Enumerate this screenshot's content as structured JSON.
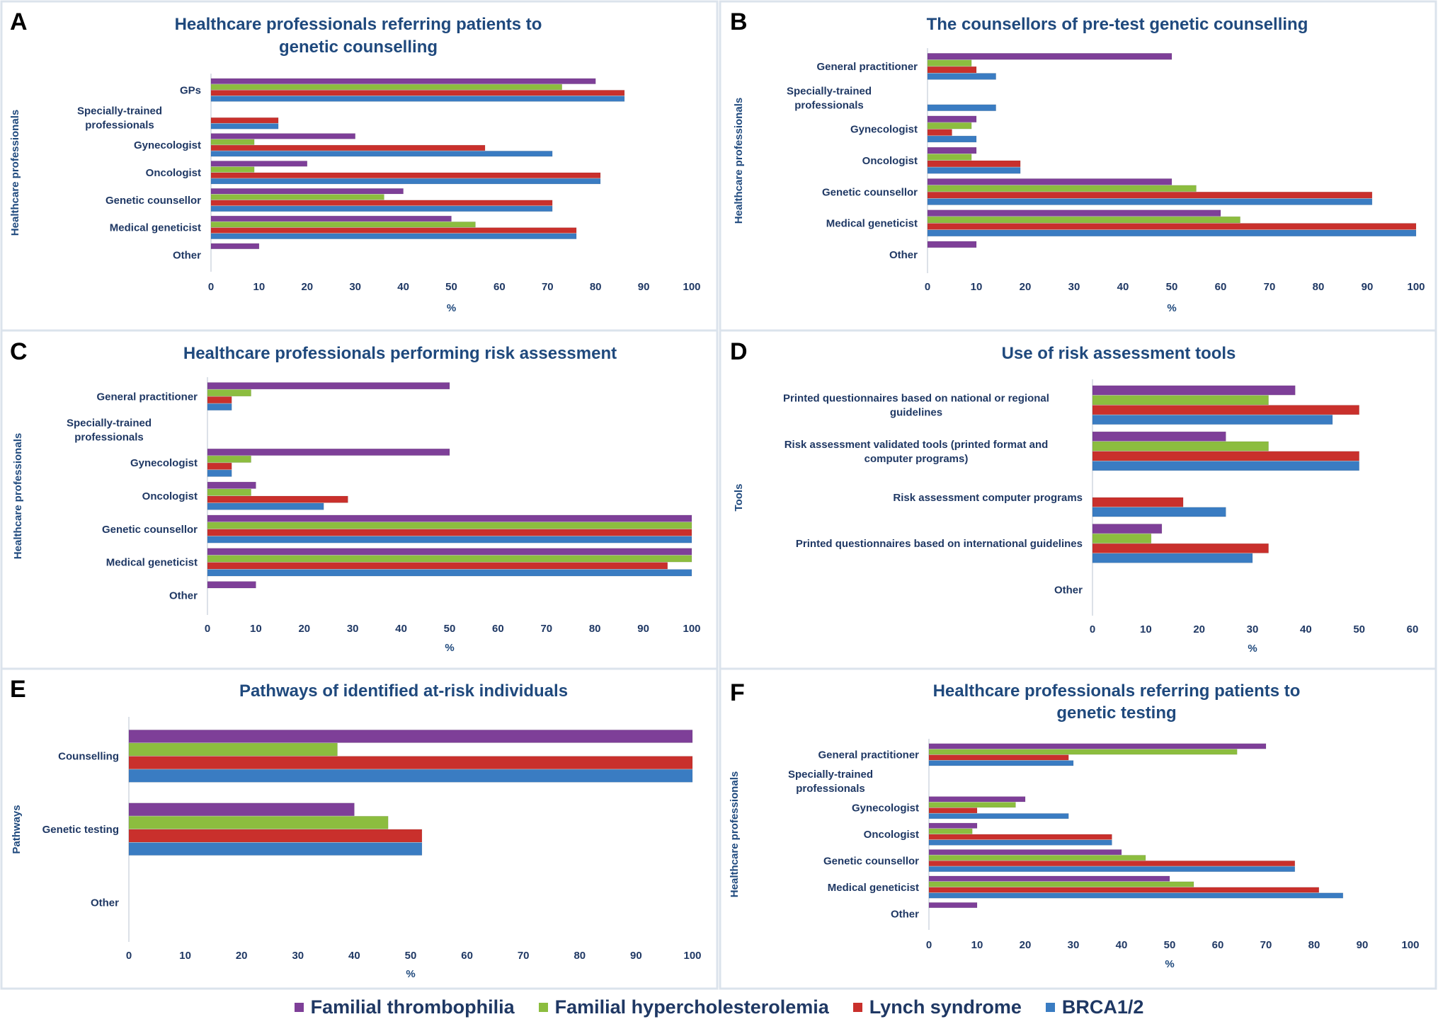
{
  "colors": {
    "Familial thrombophilia": "#7e3f98",
    "Familial hypercholesterolemia": "#8cbd3f",
    "Lynch syndrome": "#c9302c",
    "BRCA1/2": "#3a7cc2"
  },
  "legend": {
    "items": [
      {
        "label": "Familial thrombophilia",
        "color": "#7e3f98"
      },
      {
        "label": "Familial hypercholesterolemia",
        "color": "#8cbd3f"
      },
      {
        "label": "Lynch syndrome",
        "color": "#c9302c"
      },
      {
        "label": "BRCA1/2",
        "color": "#3a7cc2"
      }
    ]
  },
  "chart_data": [
    {
      "panel": "A",
      "type": "bar",
      "orientation": "horizontal",
      "title": "Healthcare professionals referring patients to genetic counselling",
      "xlabel": "%",
      "ylabel": "Healthcare professionals",
      "xlim": [
        0,
        100
      ],
      "xticks": [
        0,
        10,
        20,
        30,
        40,
        50,
        60,
        70,
        80,
        90,
        100
      ],
      "categories": [
        "GPs",
        "Specially-trained professionals",
        "Gynecologist",
        "Oncologist",
        "Genetic counsellor",
        "Medical geneticist",
        "Other"
      ],
      "series": [
        {
          "name": "Familial thrombophilia",
          "values": [
            80,
            0,
            30,
            20,
            40,
            50,
            10
          ]
        },
        {
          "name": "Familial hypercholesterolemia",
          "values": [
            73,
            0,
            9,
            9,
            36,
            55,
            0
          ]
        },
        {
          "name": "Lynch syndrome",
          "values": [
            86,
            14,
            57,
            81,
            71,
            76,
            0
          ]
        },
        {
          "name": "BRCA1/2",
          "values": [
            86,
            14,
            71,
            81,
            71,
            76,
            0
          ]
        }
      ]
    },
    {
      "panel": "B",
      "type": "bar",
      "orientation": "horizontal",
      "title": "The counsellors of pre-test genetic counselling",
      "xlabel": "%",
      "ylabel": "Healthcare professionals",
      "xlim": [
        0,
        100
      ],
      "xticks": [
        0,
        10,
        20,
        30,
        40,
        50,
        60,
        70,
        80,
        90,
        100
      ],
      "categories": [
        "General practitioner",
        "Specially-trained professionals",
        "Gynecologist",
        "Oncologist",
        "Genetic counsellor",
        "Medical geneticist",
        "Other"
      ],
      "series": [
        {
          "name": "Familial thrombophilia",
          "values": [
            50,
            0,
            10,
            10,
            50,
            60,
            10
          ]
        },
        {
          "name": "Familial hypercholesterolemia",
          "values": [
            9,
            0,
            9,
            9,
            55,
            64,
            0
          ]
        },
        {
          "name": "Lynch syndrome",
          "values": [
            10,
            0,
            5,
            19,
            91,
            100,
            0
          ]
        },
        {
          "name": "BRCA1/2",
          "values": [
            14,
            14,
            10,
            19,
            91,
            100,
            0
          ]
        }
      ]
    },
    {
      "panel": "C",
      "type": "bar",
      "orientation": "horizontal",
      "title": "Healthcare professionals performing risk assessment",
      "xlabel": "%",
      "ylabel": "Healthcare professionals",
      "xlim": [
        0,
        100
      ],
      "xticks": [
        0,
        10,
        20,
        30,
        40,
        50,
        60,
        70,
        80,
        90,
        100
      ],
      "categories": [
        "General practitioner",
        "Specially-trained professionals",
        "Gynecologist",
        "Oncologist",
        "Genetic counsellor",
        "Medical geneticist",
        "Other"
      ],
      "series": [
        {
          "name": "Familial thrombophilia",
          "values": [
            50,
            0,
            50,
            10,
            100,
            100,
            10
          ]
        },
        {
          "name": "Familial hypercholesterolemia",
          "values": [
            9,
            0,
            9,
            9,
            100,
            100,
            0
          ]
        },
        {
          "name": "Lynch syndrome",
          "values": [
            5,
            0,
            5,
            29,
            100,
            95,
            0
          ]
        },
        {
          "name": "BRCA1/2",
          "values": [
            5,
            0,
            5,
            24,
            100,
            100,
            0
          ]
        }
      ]
    },
    {
      "panel": "D",
      "type": "bar",
      "orientation": "horizontal",
      "title": "Use of risk assessment tools",
      "xlabel": "%",
      "ylabel": "Tools",
      "xlim": [
        0,
        60
      ],
      "xticks": [
        0,
        10,
        20,
        30,
        40,
        50,
        60
      ],
      "categories": [
        "Printed questionnaires based on national or regional guidelines",
        "Risk assessment validated tools (printed format and computer programs)",
        "Risk assessment computer programs",
        "Printed questionnaires based on international guidelines",
        "Other"
      ],
      "series": [
        {
          "name": "Familial thrombophilia",
          "values": [
            38,
            25,
            0,
            13,
            0
          ]
        },
        {
          "name": "Familial hypercholesterolemia",
          "values": [
            33,
            33,
            0,
            11,
            0
          ]
        },
        {
          "name": "Lynch syndrome",
          "values": [
            50,
            50,
            17,
            33,
            0
          ]
        },
        {
          "name": "BRCA1/2",
          "values": [
            45,
            50,
            25,
            30,
            0
          ]
        }
      ]
    },
    {
      "panel": "E",
      "type": "bar",
      "orientation": "horizontal",
      "title": "Pathways of identified at-risk individuals",
      "xlabel": "%",
      "ylabel": "Pathways",
      "xlim": [
        0,
        100
      ],
      "xticks": [
        0,
        10,
        20,
        30,
        40,
        50,
        60,
        70,
        80,
        90,
        100
      ],
      "categories": [
        "Counselling",
        "Genetic testing",
        "Other"
      ],
      "series": [
        {
          "name": "Familial thrombophilia",
          "values": [
            100,
            40,
            0
          ]
        },
        {
          "name": "Familial hypercholesterolemia",
          "values": [
            37,
            46,
            0
          ]
        },
        {
          "name": "Lynch syndrome",
          "values": [
            100,
            52,
            0
          ]
        },
        {
          "name": "BRCA1/2",
          "values": [
            100,
            52,
            0
          ]
        }
      ]
    },
    {
      "panel": "F",
      "type": "bar",
      "orientation": "horizontal",
      "title": "Healthcare professionals referring patients to genetic testing",
      "xlabel": "%",
      "ylabel": "Healthcare professionals",
      "xlim": [
        0,
        100
      ],
      "xticks": [
        0,
        10,
        20,
        30,
        40,
        50,
        60,
        70,
        80,
        90,
        100
      ],
      "categories": [
        "General practitioner",
        "Specially-trained professionals",
        "Gynecologist",
        "Oncologist",
        "Genetic counsellor",
        "Medical geneticist",
        "Other"
      ],
      "series": [
        {
          "name": "Familial thrombophilia",
          "values": [
            70,
            0,
            20,
            10,
            40,
            50,
            10
          ]
        },
        {
          "name": "Familial hypercholesterolemia",
          "values": [
            64,
            0,
            18,
            9,
            45,
            55,
            0
          ]
        },
        {
          "name": "Lynch syndrome",
          "values": [
            29,
            0,
            10,
            38,
            76,
            81,
            0
          ]
        },
        {
          "name": "BRCA1/2",
          "values": [
            30,
            0,
            29,
            38,
            76,
            86,
            0
          ]
        }
      ]
    }
  ]
}
